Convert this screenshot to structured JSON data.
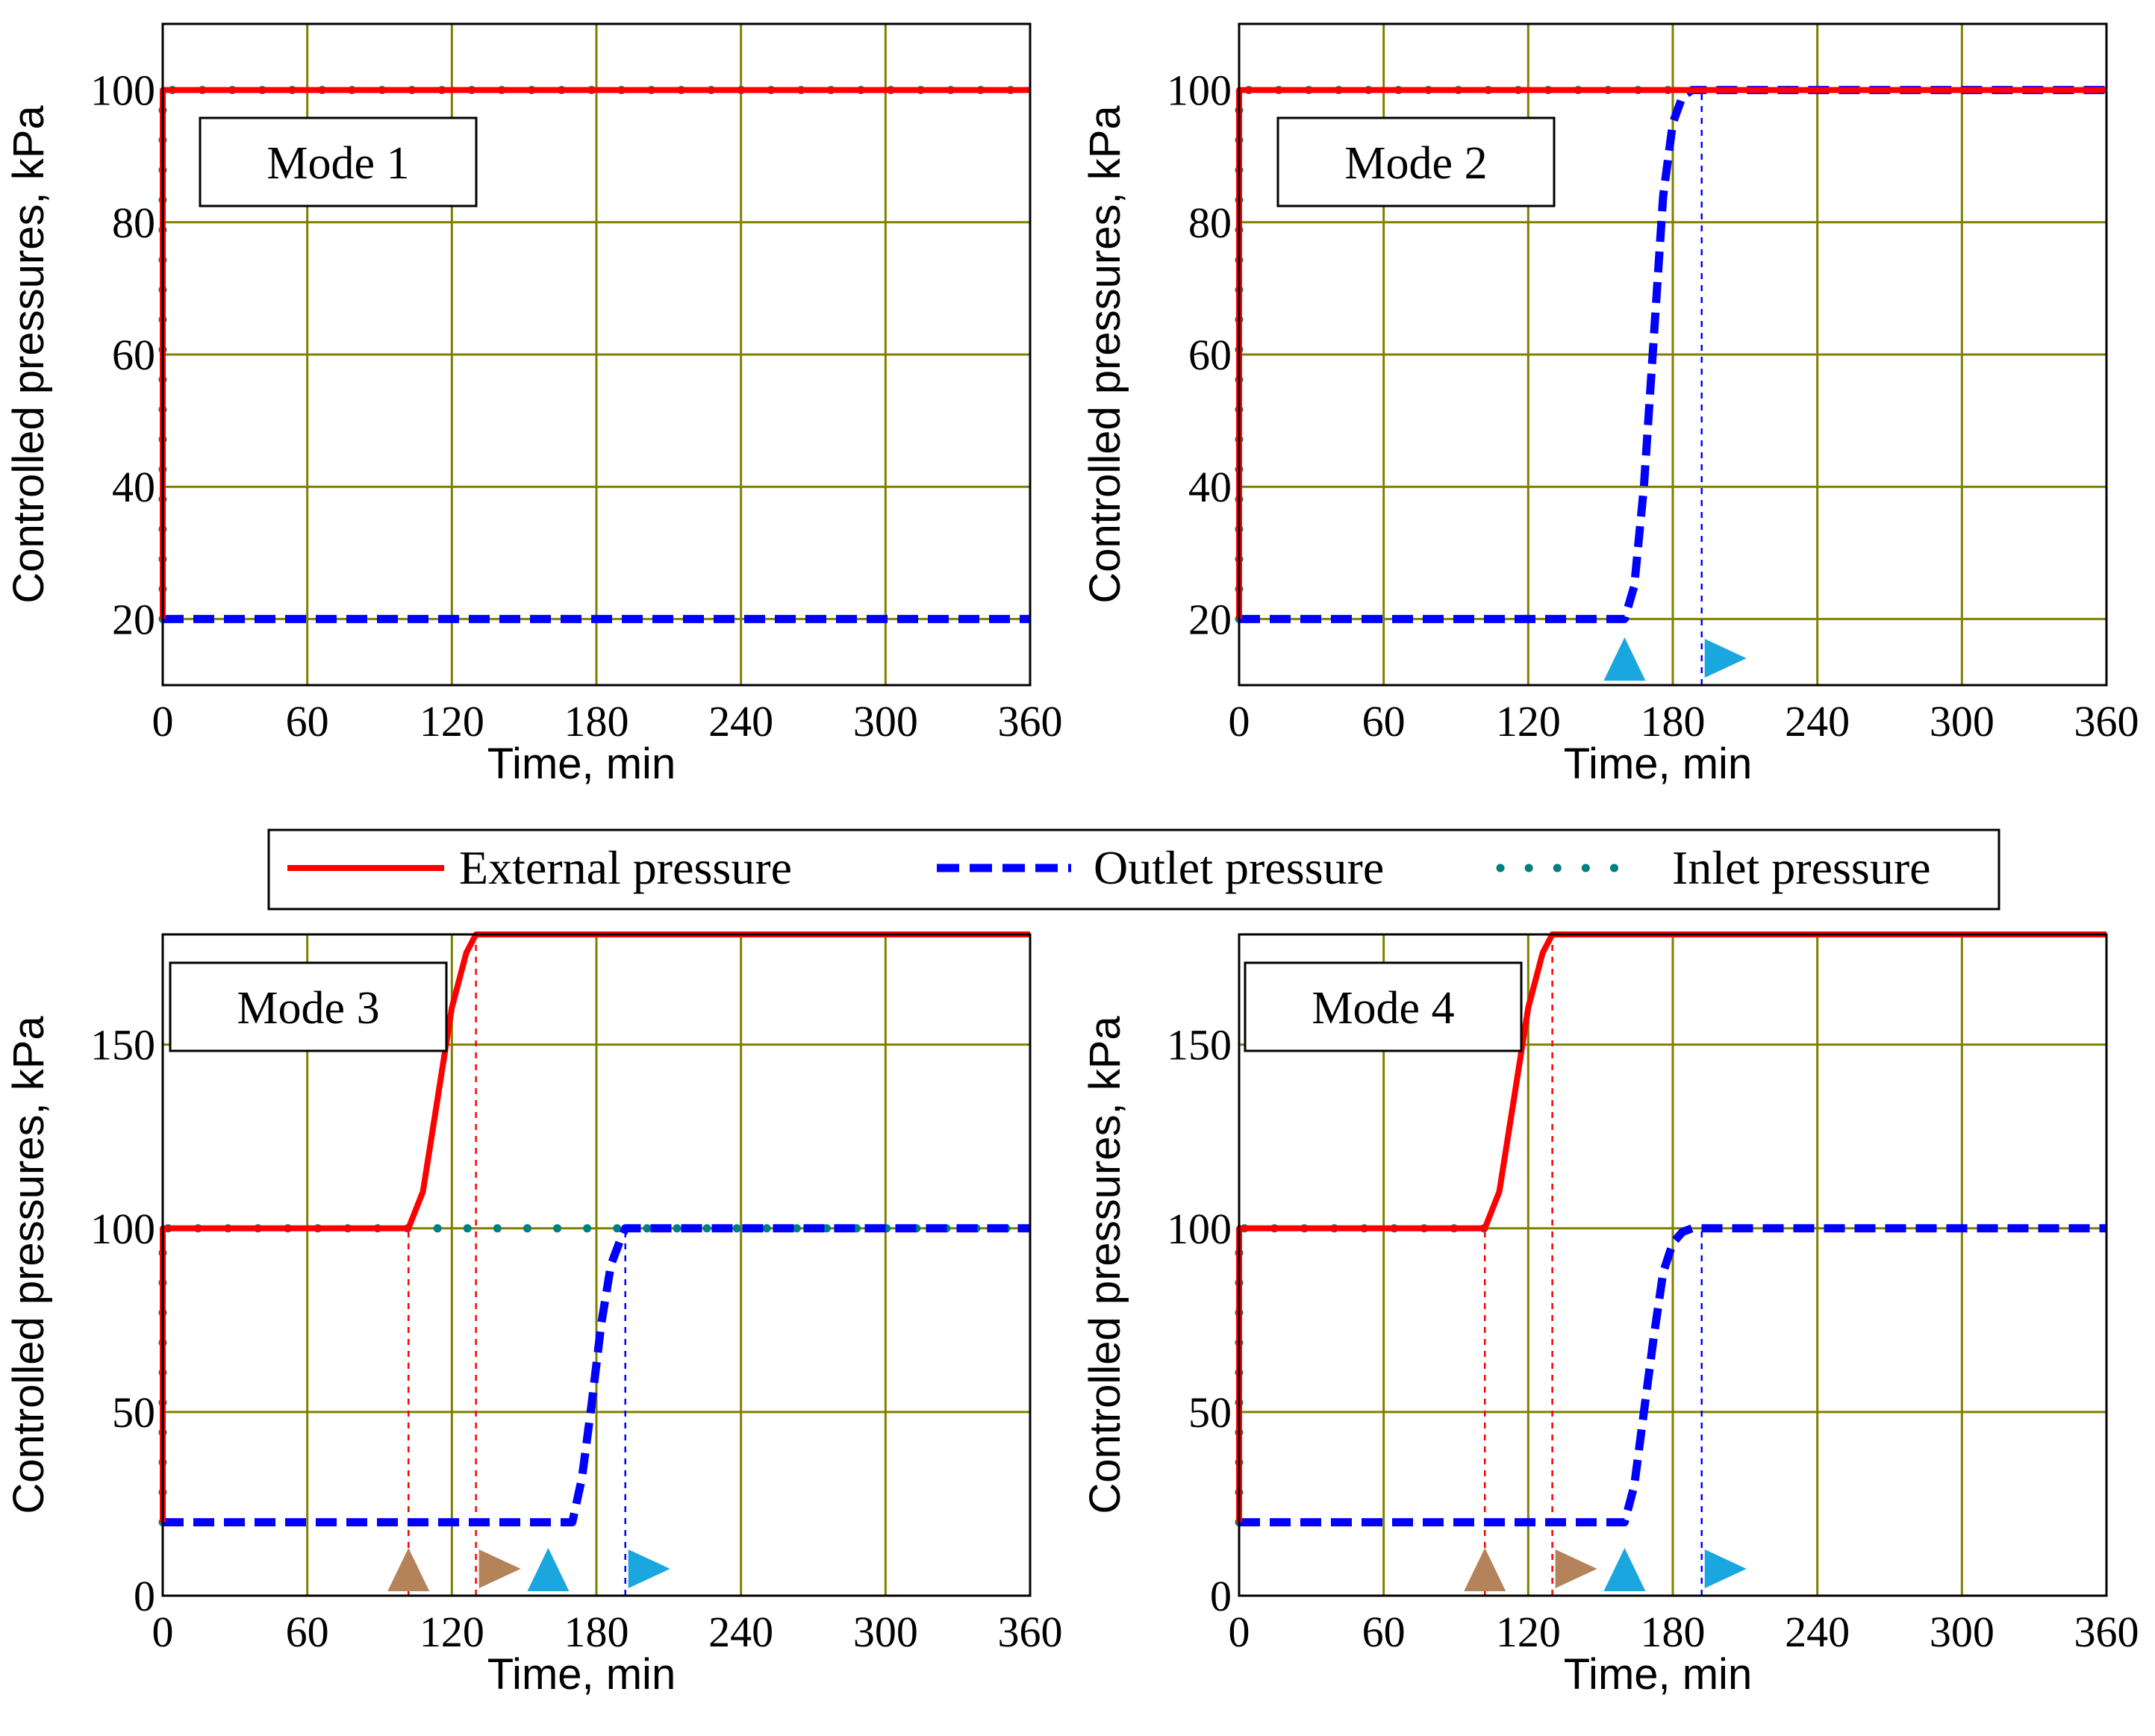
{
  "colors": {
    "external": "#ff0000",
    "outlet": "#0000ff",
    "inlet": "#008080",
    "grid": "#808000",
    "marker_blue": "#1aa7e0",
    "marker_brown": "#b5835a"
  },
  "legend": {
    "external_label": "External pressure",
    "outlet_label": "Outlet pressure",
    "inlet_label": "Inlet pressure"
  },
  "chart_data": [
    {
      "type": "line",
      "title": "Mode 1",
      "xlabel": "Time, min",
      "ylabel": "Controlled pressures, kPa",
      "xlim": [
        0,
        360
      ],
      "ylim": [
        10,
        110
      ],
      "xticks": [
        0,
        60,
        120,
        180,
        240,
        300,
        360
      ],
      "yticks": [
        20,
        40,
        60,
        80,
        100
      ],
      "series": [
        {
          "name": "External pressure",
          "x": [
            0,
            0,
            360
          ],
          "y": [
            20,
            100,
            100
          ]
        },
        {
          "name": "Outlet pressure",
          "x": [
            0,
            360
          ],
          "y": [
            20,
            20
          ]
        },
        {
          "name": "Inlet pressure",
          "x": [
            0,
            0,
            360
          ],
          "y": [
            20,
            100,
            100
          ]
        }
      ],
      "vlines": [],
      "markers": []
    },
    {
      "type": "line",
      "title": "Mode 2",
      "xlabel": "Time, min",
      "ylabel": "Controlled pressures, kPa",
      "xlim": [
        0,
        360
      ],
      "ylim": [
        10,
        110
      ],
      "xticks": [
        0,
        60,
        120,
        180,
        240,
        300,
        360
      ],
      "yticks": [
        20,
        40,
        60,
        80,
        100
      ],
      "series": [
        {
          "name": "External pressure",
          "x": [
            0,
            0,
            360
          ],
          "y": [
            20,
            100,
            100
          ]
        },
        {
          "name": "Outlet pressure",
          "x": [
            0,
            160,
            164,
            168,
            172,
            176,
            180,
            184,
            188,
            192,
            360
          ],
          "y": [
            20,
            20,
            25,
            40,
            62,
            84,
            95,
            99,
            100,
            100,
            100
          ]
        },
        {
          "name": "Inlet pressure",
          "x": [
            0,
            0,
            360
          ],
          "y": [
            20,
            100,
            100
          ]
        }
      ],
      "vlines": [
        {
          "x": 192,
          "y1": 10,
          "y2": 100,
          "color": "outlet"
        }
      ],
      "markers": [
        {
          "x": 160,
          "kind": "up",
          "color": "marker_blue"
        },
        {
          "x": 192,
          "kind": "right",
          "color": "marker_blue"
        }
      ]
    },
    {
      "type": "line",
      "title": "Mode 3",
      "xlabel": "Time, min",
      "ylabel": "Controlled pressures, kPa",
      "xlim": [
        0,
        360
      ],
      "ylim": [
        0,
        180
      ],
      "xticks": [
        0,
        60,
        120,
        180,
        240,
        300,
        360
      ],
      "yticks": [
        0,
        50,
        100,
        150
      ],
      "series": [
        {
          "name": "External pressure",
          "x": [
            0,
            0,
            102,
            108,
            114,
            120,
            126,
            130,
            360
          ],
          "y": [
            20,
            100,
            100,
            110,
            135,
            160,
            175,
            180,
            180
          ]
        },
        {
          "name": "Outlet pressure",
          "x": [
            0,
            170,
            174,
            178,
            182,
            186,
            190,
            192,
            360
          ],
          "y": [
            20,
            20,
            32,
            52,
            74,
            90,
            97,
            100,
            100
          ]
        },
        {
          "name": "Inlet pressure",
          "x": [
            0,
            0,
            360
          ],
          "y": [
            20,
            100,
            100
          ]
        }
      ],
      "vlines": [
        {
          "x": 102,
          "y1": 0,
          "y2": 100,
          "color": "external"
        },
        {
          "x": 130,
          "y1": 0,
          "y2": 180,
          "color": "external"
        },
        {
          "x": 192,
          "y1": 0,
          "y2": 100,
          "color": "outlet"
        }
      ],
      "markers": [
        {
          "x": 102,
          "kind": "up",
          "color": "marker_brown"
        },
        {
          "x": 130,
          "kind": "right",
          "color": "marker_brown"
        },
        {
          "x": 160,
          "kind": "up",
          "color": "marker_blue"
        },
        {
          "x": 192,
          "kind": "right",
          "color": "marker_blue"
        }
      ]
    },
    {
      "type": "line",
      "title": "Mode 4",
      "xlabel": "Time, min",
      "ylabel": "Controlled pressures, kPa",
      "xlim": [
        0,
        360
      ],
      "ylim": [
        0,
        180
      ],
      "xticks": [
        0,
        60,
        120,
        180,
        240,
        300,
        360
      ],
      "yticks": [
        0,
        50,
        100,
        150
      ],
      "series": [
        {
          "name": "External pressure",
          "x": [
            0,
            0,
            102,
            108,
            114,
            120,
            126,
            130,
            360
          ],
          "y": [
            20,
            100,
            100,
            110,
            135,
            160,
            175,
            180,
            180
          ]
        },
        {
          "name": "Outlet pressure",
          "x": [
            0,
            160,
            164,
            168,
            172,
            176,
            180,
            184,
            188,
            192,
            360
          ],
          "y": [
            20,
            20,
            30,
            50,
            70,
            88,
            96,
            99,
            100,
            100,
            100
          ]
        },
        {
          "name": "Inlet pressure",
          "x": [
            0,
            0,
            108
          ],
          "y": [
            20,
            100,
            100
          ]
        }
      ],
      "vlines": [
        {
          "x": 102,
          "y1": 0,
          "y2": 100,
          "color": "external"
        },
        {
          "x": 130,
          "y1": 0,
          "y2": 180,
          "color": "external"
        },
        {
          "x": 192,
          "y1": 0,
          "y2": 100,
          "color": "outlet"
        }
      ],
      "markers": [
        {
          "x": 102,
          "kind": "up",
          "color": "marker_brown"
        },
        {
          "x": 130,
          "kind": "right",
          "color": "marker_brown"
        },
        {
          "x": 160,
          "kind": "up",
          "color": "marker_blue"
        },
        {
          "x": 192,
          "kind": "right",
          "color": "marker_blue"
        }
      ]
    }
  ]
}
